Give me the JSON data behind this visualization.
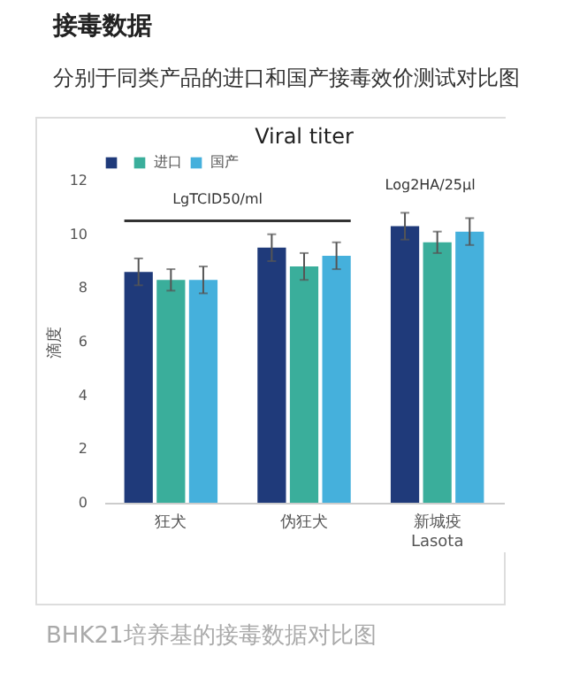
{
  "chart_data": {
    "type": "bar",
    "title": "接毒数据",
    "subtitle": "分别于同类产品的进口和国产接毒效价测试对比图",
    "ylabel": "滴度",
    "categories": [
      "狂犬",
      "伪狂犬",
      "新城疫\nLasota"
    ],
    "series": [
      {
        "color": "#1f3a7a",
        "values": [
          8.6,
          9.5,
          10.3
        ],
        "errors": [
          0.5,
          0.5,
          0.5
        ]
      },
      {
        "name": "进口",
        "color": "#3aae9b",
        "values": [
          8.3,
          8.8,
          9.7
        ],
        "errors": [
          0.4,
          0.5,
          0.4
        ]
      },
      {
        "name": "国产",
        "color": "#45b0dc",
        "values": [
          8.3,
          9.2,
          10.1
        ],
        "errors": [
          0.5,
          0.5,
          0.5
        ]
      }
    ],
    "ylim": [
      0,
      12
    ],
    "yticks": [
      0,
      2,
      4,
      6,
      8,
      10,
      12
    ],
    "grid": false,
    "legend": "top",
    "ref_lines": [
      {
        "axis": "y",
        "value": 10.5,
        "label": "LgTCID50/ml",
        "color": "#333333"
      }
    ],
    "annotations": [
      "Viral titer",
      "Log2HA/25μl",
      "BHK21培养基的接毒数据对比图"
    ]
  }
}
